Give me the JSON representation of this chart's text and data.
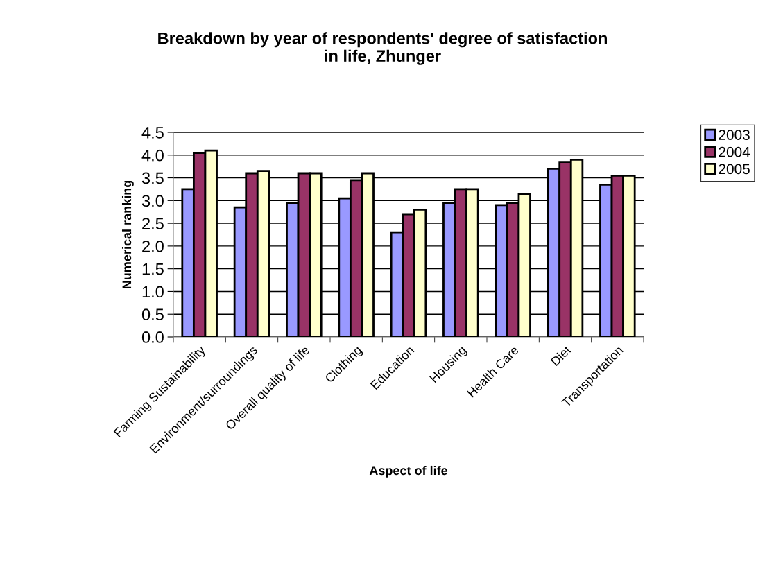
{
  "chart_data": {
    "type": "bar",
    "title": "Breakdown by year of respondents' degree of satisfaction in life, Zhunger",
    "xlabel": "Aspect of life",
    "ylabel": "Numerical ranking",
    "categories": [
      "Farming Sustainability",
      "Environment/surroundings",
      "Overall quality of life",
      "Clothing",
      "Education",
      "Housing",
      "Health Care",
      "Diet",
      "Transportation"
    ],
    "series": [
      {
        "name": "2003",
        "color": "#9999ff",
        "values": [
          3.25,
          2.85,
          2.95,
          3.05,
          2.3,
          2.95,
          2.9,
          3.7,
          3.35
        ]
      },
      {
        "name": "2004",
        "color": "#993366",
        "values": [
          4.05,
          3.6,
          3.6,
          3.45,
          2.7,
          3.25,
          2.95,
          3.85,
          3.55
        ]
      },
      {
        "name": "2005",
        "color": "#ffffcc",
        "values": [
          4.1,
          3.65,
          3.6,
          3.6,
          2.8,
          3.25,
          3.15,
          3.9,
          3.55
        ]
      }
    ],
    "ylim": [
      0,
      4.5
    ],
    "yticks": [
      {
        "value": 0,
        "label": "0.0"
      },
      {
        "value": 0.5,
        "label": "0.5"
      },
      {
        "value": 1,
        "label": "1.0"
      },
      {
        "value": 1.5,
        "label": "1.5"
      },
      {
        "value": 2,
        "label": "2.0"
      },
      {
        "value": 2.5,
        "label": "2.5"
      },
      {
        "value": 3,
        "label": "3.0"
      },
      {
        "value": 3.5,
        "label": "3.5"
      },
      {
        "value": 4,
        "label": "4.0"
      },
      {
        "value": 4.5,
        "label": "4.5"
      }
    ],
    "grid": "y",
    "legend": "right"
  }
}
